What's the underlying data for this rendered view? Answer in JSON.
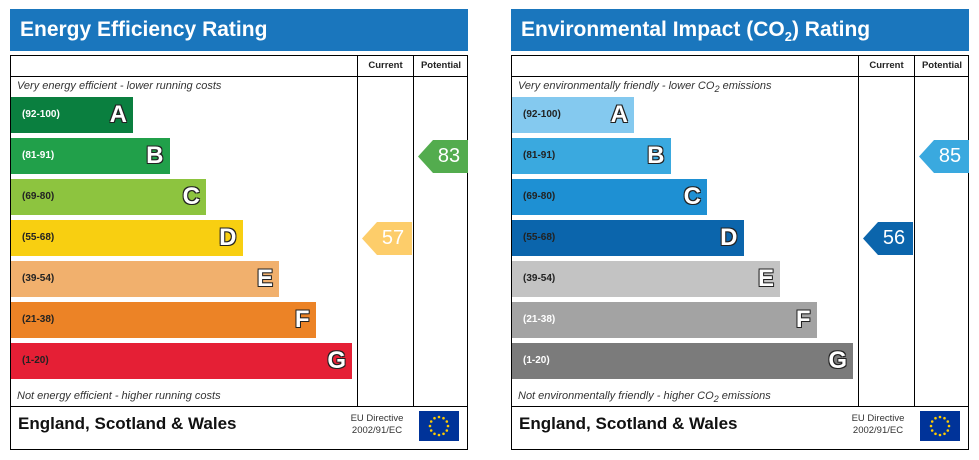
{
  "energy": {
    "title": "Energy Efficiency Rating",
    "col_current": "Current",
    "col_potential": "Potential",
    "top_note": "Very energy efficient - lower running costs",
    "bottom_note": "Not energy efficient - higher running costs",
    "bands": [
      {
        "range": "(92-100)",
        "letter": "A",
        "color": "#0a7f3f",
        "rangeColor": "#ffffff"
      },
      {
        "range": "(81-91)",
        "letter": "B",
        "color": "#21a04a",
        "rangeColor": "#ffffff"
      },
      {
        "range": "(69-80)",
        "letter": "C",
        "color": "#8dc43f",
        "rangeColor": "#222222"
      },
      {
        "range": "(55-68)",
        "letter": "D",
        "color": "#f8cf11",
        "rangeColor": "#222222"
      },
      {
        "range": "(39-54)",
        "letter": "E",
        "color": "#f1b06d",
        "rangeColor": "#222222"
      },
      {
        "range": "(21-38)",
        "letter": "F",
        "color": "#ec8326",
        "rangeColor": "#222222"
      },
      {
        "range": "(1-20)",
        "letter": "G",
        "color": "#e51f35",
        "rangeColor": "#222222"
      }
    ],
    "current": {
      "value": "57",
      "band": "D",
      "color": "#fdcd6a"
    },
    "potential": {
      "value": "83",
      "band": "B",
      "color": "#53ac4e"
    },
    "footer": "England, Scotland & Wales",
    "eu_line1": "EU Directive",
    "eu_line2": "2002/91/EC"
  },
  "environment": {
    "title_pre": "Environmental Impact (CO",
    "title_sub": "2",
    "title_post": ") Rating",
    "col_current": "Current",
    "col_potential": "Potential",
    "top_note_pre": "Very environmentally friendly - lower CO",
    "top_note_sub": "2",
    "top_note_post": " emissions",
    "bottom_note_pre": "Not environmentally friendly - higher CO",
    "bottom_note_sub": "2",
    "bottom_note_post": " emissions",
    "bands": [
      {
        "range": "(92-100)",
        "letter": "A",
        "color": "#84c9ef",
        "rangeColor": "#222222"
      },
      {
        "range": "(81-91)",
        "letter": "B",
        "color": "#3aa9df",
        "rangeColor": "#222222"
      },
      {
        "range": "(69-80)",
        "letter": "C",
        "color": "#1e90d3",
        "rangeColor": "#222222"
      },
      {
        "range": "(55-68)",
        "letter": "D",
        "color": "#0b65ac",
        "rangeColor": "#222222"
      },
      {
        "range": "(39-54)",
        "letter": "E",
        "color": "#c3c3c3",
        "rangeColor": "#222222"
      },
      {
        "range": "(21-38)",
        "letter": "F",
        "color": "#a3a3a3",
        "rangeColor": "#ffffff"
      },
      {
        "range": "(1-20)",
        "letter": "G",
        "color": "#7b7b7b",
        "rangeColor": "#ffffff"
      }
    ],
    "current": {
      "value": "56",
      "band": "D",
      "color": "#0b65ac"
    },
    "potential": {
      "value": "85",
      "band": "B",
      "color": "#3aa9df"
    },
    "footer": "England, Scotland & Wales",
    "eu_line1": "EU Directive",
    "eu_line2": "2002/91/EC"
  }
}
